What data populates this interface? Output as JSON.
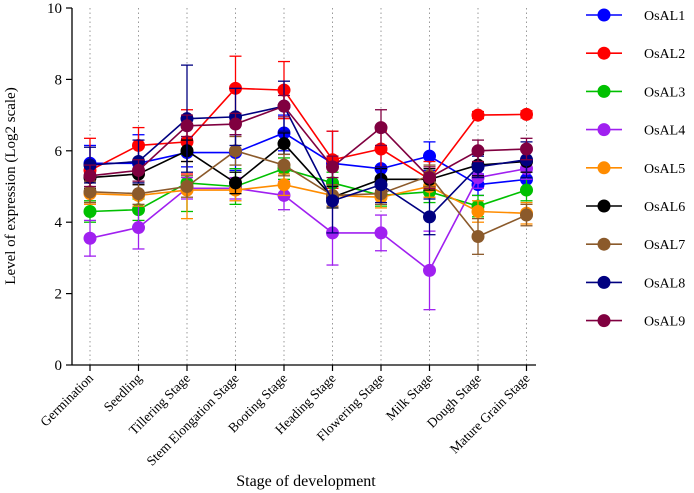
{
  "chart_data": {
    "type": "line",
    "title": "",
    "xlabel": "Stage of development",
    "ylabel": "Level of expression (Log2 scale)",
    "ylim": [
      0,
      10
    ],
    "yticks": [
      0,
      2,
      4,
      6,
      8,
      10
    ],
    "grid": "vertical dotted",
    "legend": "right",
    "categories": [
      "Germination",
      "Seedling",
      "Tillering Stage",
      "Stem Elongation Stage",
      "Booting Stage",
      "Heading Stage",
      "Flowering Stage",
      "Milk Stage",
      "Dough Stage",
      "Mature Grain Stage"
    ],
    "series": [
      {
        "name": "OsAL1",
        "color": "#0000ff",
        "values": [
          5.65,
          5.65,
          5.95,
          5.95,
          6.5,
          5.65,
          5.5,
          5.85,
          5.05,
          5.2
        ],
        "errors": [
          0.5,
          0.8,
          0.4,
          0.5,
          0.5,
          0.9,
          0.5,
          0.4,
          0.3,
          0.3
        ]
      },
      {
        "name": "OsAL2",
        "color": "#ff0000",
        "values": [
          5.45,
          6.15,
          6.25,
          7.75,
          7.7,
          5.75,
          6.05,
          5.2,
          7.0,
          7.02
        ],
        "errors": [
          0.9,
          0.5,
          0.9,
          0.9,
          0.8,
          0.8,
          0.5,
          0.5,
          0.1,
          0.1
        ]
      },
      {
        "name": "OsAL3",
        "color": "#00c000",
        "values": [
          4.3,
          4.35,
          5.1,
          5.0,
          5.5,
          5.1,
          4.75,
          4.85,
          4.45,
          4.9
        ],
        "errors": [
          0.3,
          0.3,
          0.8,
          0.5,
          0.3,
          0.3,
          0.3,
          0.3,
          0.3,
          0.3
        ]
      },
      {
        "name": "OsAL4",
        "color": "#a020f0",
        "values": [
          3.55,
          3.85,
          4.95,
          4.95,
          4.75,
          3.7,
          3.7,
          2.65,
          5.25,
          5.5
        ],
        "errors": [
          0.5,
          0.6,
          0.3,
          0.3,
          0.4,
          0.9,
          0.5,
          1.1,
          0.3,
          0.3
        ]
      },
      {
        "name": "OsAL5",
        "color": "#ff8c00",
        "values": [
          4.8,
          4.75,
          4.9,
          4.9,
          5.05,
          4.75,
          4.7,
          5.0,
          4.3,
          4.25
        ],
        "errors": [
          0.3,
          0.3,
          0.8,
          0.3,
          0.3,
          0.3,
          0.3,
          0.3,
          0.3,
          0.3
        ]
      },
      {
        "name": "OsAL6",
        "color": "#000000",
        "values": [
          5.25,
          5.35,
          6.0,
          5.1,
          6.2,
          4.7,
          5.2,
          5.2,
          5.6,
          5.7
        ],
        "errors": [
          0.3,
          0.3,
          0.3,
          0.3,
          0.3,
          0.3,
          0.3,
          0.3,
          0.3,
          0.3
        ]
      },
      {
        "name": "OsAL7",
        "color": "#8b5a2b",
        "values": [
          4.85,
          4.8,
          5.0,
          6.0,
          5.6,
          4.75,
          4.8,
          5.3,
          3.6,
          4.2
        ],
        "errors": [
          0.3,
          0.3,
          0.3,
          0.4,
          0.3,
          0.3,
          0.3,
          0.3,
          0.5,
          0.3
        ]
      },
      {
        "name": "OsAL8",
        "color": "#000080",
        "values": [
          5.6,
          5.7,
          6.9,
          6.95,
          7.25,
          4.6,
          5.05,
          4.15,
          5.55,
          5.75
        ],
        "errors": [
          0.5,
          0.6,
          1.5,
          0.8,
          0.7,
          0.9,
          0.5,
          0.5,
          0.3,
          0.5
        ]
      },
      {
        "name": "OsAL9",
        "color": "#800040",
        "values": [
          5.3,
          5.45,
          6.7,
          6.75,
          7.25,
          5.55,
          6.65,
          5.25,
          6.0,
          6.05
        ],
        "errors": [
          0.3,
          0.3,
          0.3,
          0.3,
          0.3,
          0.3,
          0.5,
          0.3,
          0.3,
          0.3
        ]
      }
    ]
  }
}
